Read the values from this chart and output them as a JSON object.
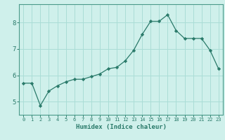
{
  "x": [
    0,
    1,
    2,
    3,
    4,
    5,
    6,
    7,
    8,
    9,
    10,
    11,
    12,
    13,
    14,
    15,
    16,
    17,
    18,
    19,
    20,
    21,
    22,
    23
  ],
  "y": [
    5.7,
    5.7,
    4.85,
    5.4,
    5.6,
    5.75,
    5.85,
    5.85,
    5.95,
    6.05,
    6.25,
    6.3,
    6.55,
    6.95,
    7.55,
    8.05,
    8.05,
    8.3,
    7.7,
    7.4,
    7.4,
    7.4,
    6.95,
    6.25
  ],
  "xlabel": "Humidex (Indice chaleur)",
  "bg_color": "#cff0eb",
  "line_color": "#2a7a6a",
  "marker_color": "#2a7a6a",
  "grid_color": "#aaddd6",
  "tick_color": "#2a7a6a",
  "spine_color": "#4a9a8a",
  "ylim": [
    4.5,
    8.7
  ],
  "xlim": [
    -0.5,
    23.5
  ],
  "yticks": [
    5,
    6,
    7,
    8
  ],
  "xticks": [
    0,
    1,
    2,
    3,
    4,
    5,
    6,
    7,
    8,
    9,
    10,
    11,
    12,
    13,
    14,
    15,
    16,
    17,
    18,
    19,
    20,
    21,
    22,
    23
  ]
}
